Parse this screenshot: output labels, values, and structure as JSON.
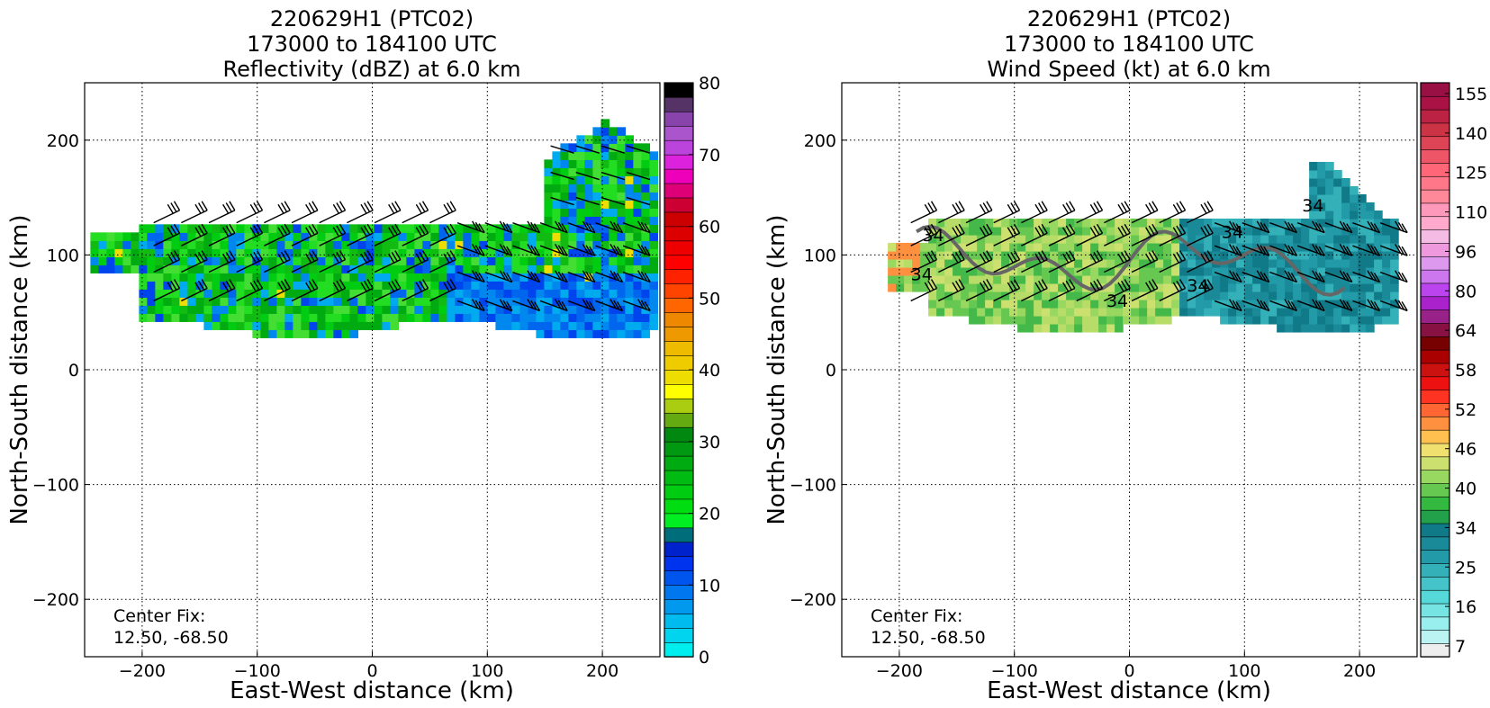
{
  "chart_data": [
    {
      "type": "heatmap",
      "title_lines": [
        "220629H1 (PTC02)",
        "173000 to 184100 UTC",
        "Reflectivity (dBZ) at 6.0 km"
      ],
      "xlabel": "East-West distance (km)",
      "ylabel": "North-South distance (km)",
      "xlim": [
        -250,
        250
      ],
      "ylim": [
        -250,
        250
      ],
      "xticks": [
        -200,
        -100,
        0,
        100,
        200
      ],
      "yticks": [
        -200,
        -100,
        0,
        100,
        200
      ],
      "grid": true,
      "annotation_lines": [
        "Center Fix:",
        "12.50, -68.50"
      ],
      "colorbar": {
        "min": 0,
        "max": 80,
        "ticks": [
          0,
          10,
          20,
          30,
          40,
          50,
          60,
          70,
          80
        ],
        "colors": [
          "#00eeee",
          "#00d4ee",
          "#00bbee",
          "#0099ee",
          "#0077ee",
          "#0055ee",
          "#0033ee",
          "#0022cc",
          "#006e7a",
          "#00ee22",
          "#00dd11",
          "#00cc11",
          "#00bb11",
          "#00aa11",
          "#009911",
          "#008811",
          "#66aa11",
          "#aacc11",
          "#ffff00",
          "#eedd00",
          "#eecc00",
          "#eebb00",
          "#ee9900",
          "#ee8800",
          "#ff6600",
          "#ff4400",
          "#ff2200",
          "#ff0000",
          "#ee0000",
          "#dd0000",
          "#cc0000",
          "#cc0033",
          "#dd0077",
          "#ee00bb",
          "#dd22dd",
          "#bb44dd",
          "#aa55cc",
          "#8844aa",
          "#553366",
          "#000000"
        ]
      },
      "field_region": {
        "x": [
          -245,
          245
        ],
        "y": [
          35,
          220
        ]
      },
      "wind_barbs": true
    },
    {
      "type": "heatmap",
      "title_lines": [
        "220629H1 (PTC02)",
        "173000 to 184100 UTC",
        "Wind Speed (kt) at 6.0 km"
      ],
      "xlabel": "East-West distance (km)",
      "ylabel": "North-South distance (km)",
      "xlim": [
        -250,
        250
      ],
      "ylim": [
        -250,
        250
      ],
      "xticks": [
        -200,
        -100,
        0,
        100,
        200
      ],
      "yticks": [
        -200,
        -100,
        0,
        100,
        200
      ],
      "grid": true,
      "annotation_lines": [
        "Center Fix:",
        "12.50, -68.50"
      ],
      "contour_label": "34",
      "colorbar": {
        "ticks": [
          7,
          16,
          25,
          34,
          40,
          46,
          52,
          58,
          64,
          80,
          96,
          110,
          125,
          140,
          155
        ],
        "colors": [
          "#eeeeee",
          "#bbf2f2",
          "#99eeee",
          "#77e4e4",
          "#55d8d8",
          "#44c4c8",
          "#33b0b8",
          "#229aa8",
          "#1a8a98",
          "#117a88",
          "#22a04a",
          "#33b840",
          "#66c850",
          "#99d860",
          "#cce070",
          "#f0e070",
          "#ffc050",
          "#ff9040",
          "#ff6633",
          "#ff3322",
          "#ee1111",
          "#cc1111",
          "#aa0000",
          "#770000",
          "#881144",
          "#992288",
          "#aa22cc",
          "#bb44ee",
          "#cc77ee",
          "#dd99ee",
          "#ee99dd",
          "#f4bbe4",
          "#ffaacc",
          "#ff99bb",
          "#ff8899",
          "#ff7788",
          "#ff6677",
          "#ee5566",
          "#dd4455",
          "#cc3344",
          "#bb2244",
          "#aa1144",
          "#991144"
        ]
      },
      "field_region": {
        "x": [
          -210,
          235
        ],
        "y": [
          40,
          185
        ]
      },
      "wind_barbs": true
    }
  ]
}
